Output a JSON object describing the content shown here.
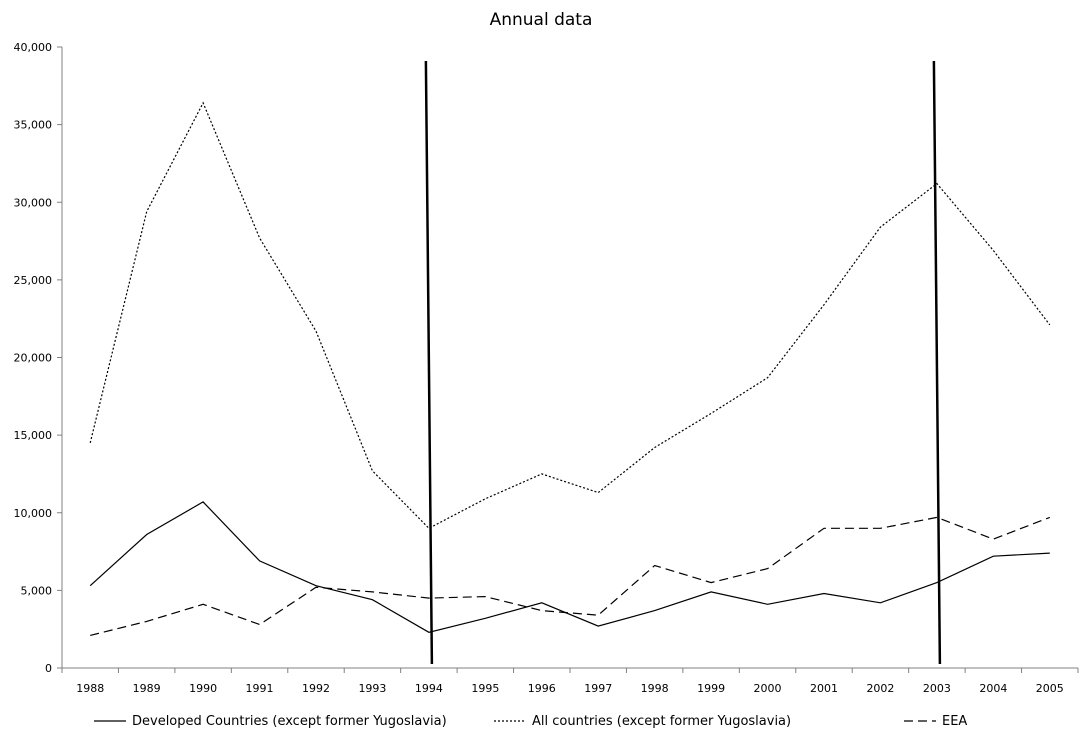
{
  "chart_data": {
    "type": "line",
    "title": "Annual data",
    "xlabel": "",
    "ylabel": "",
    "categories": [
      "1988",
      "1989",
      "1990",
      "1991",
      "1992",
      "1993",
      "1994",
      "1995",
      "1996",
      "1997",
      "1998",
      "1999",
      "2000",
      "2001",
      "2002",
      "2003",
      "2004",
      "2005"
    ],
    "ylim": [
      0,
      40000
    ],
    "y_ticks": [
      "0",
      "5,000",
      "10,000",
      "15,000",
      "20,000",
      "25,000",
      "30,000",
      "35,000",
      "40,000"
    ],
    "grid": false,
    "legend_position": "bottom",
    "series": [
      {
        "name": "Developed Countries (except former Yugoslavia)",
        "style": "solid",
        "values": [
          5300,
          8600,
          10700,
          6900,
          5300,
          4400,
          2300,
          3200,
          4200,
          2700,
          3700,
          4900,
          4100,
          4800,
          4200,
          5500,
          7200,
          7400
        ]
      },
      {
        "name": "All countries (except former Yugoslavia)",
        "style": "dotted",
        "values": [
          14500,
          29400,
          36400,
          27700,
          21700,
          12700,
          9000,
          10900,
          12500,
          11300,
          14200,
          16400,
          18700,
          23400,
          28400,
          31200,
          26900,
          22100
        ]
      },
      {
        "name": "EEA",
        "style": "dashed",
        "values": [
          2100,
          3000,
          4100,
          2800,
          5200,
          4900,
          4500,
          4600,
          3700,
          3400,
          6600,
          5500,
          6400,
          9000,
          9000,
          9700,
          8300,
          9700
        ]
      }
    ],
    "markers": [
      "1994",
      "2003"
    ],
    "colors": {
      "line": "#000000",
      "background": "#ffffff"
    }
  }
}
